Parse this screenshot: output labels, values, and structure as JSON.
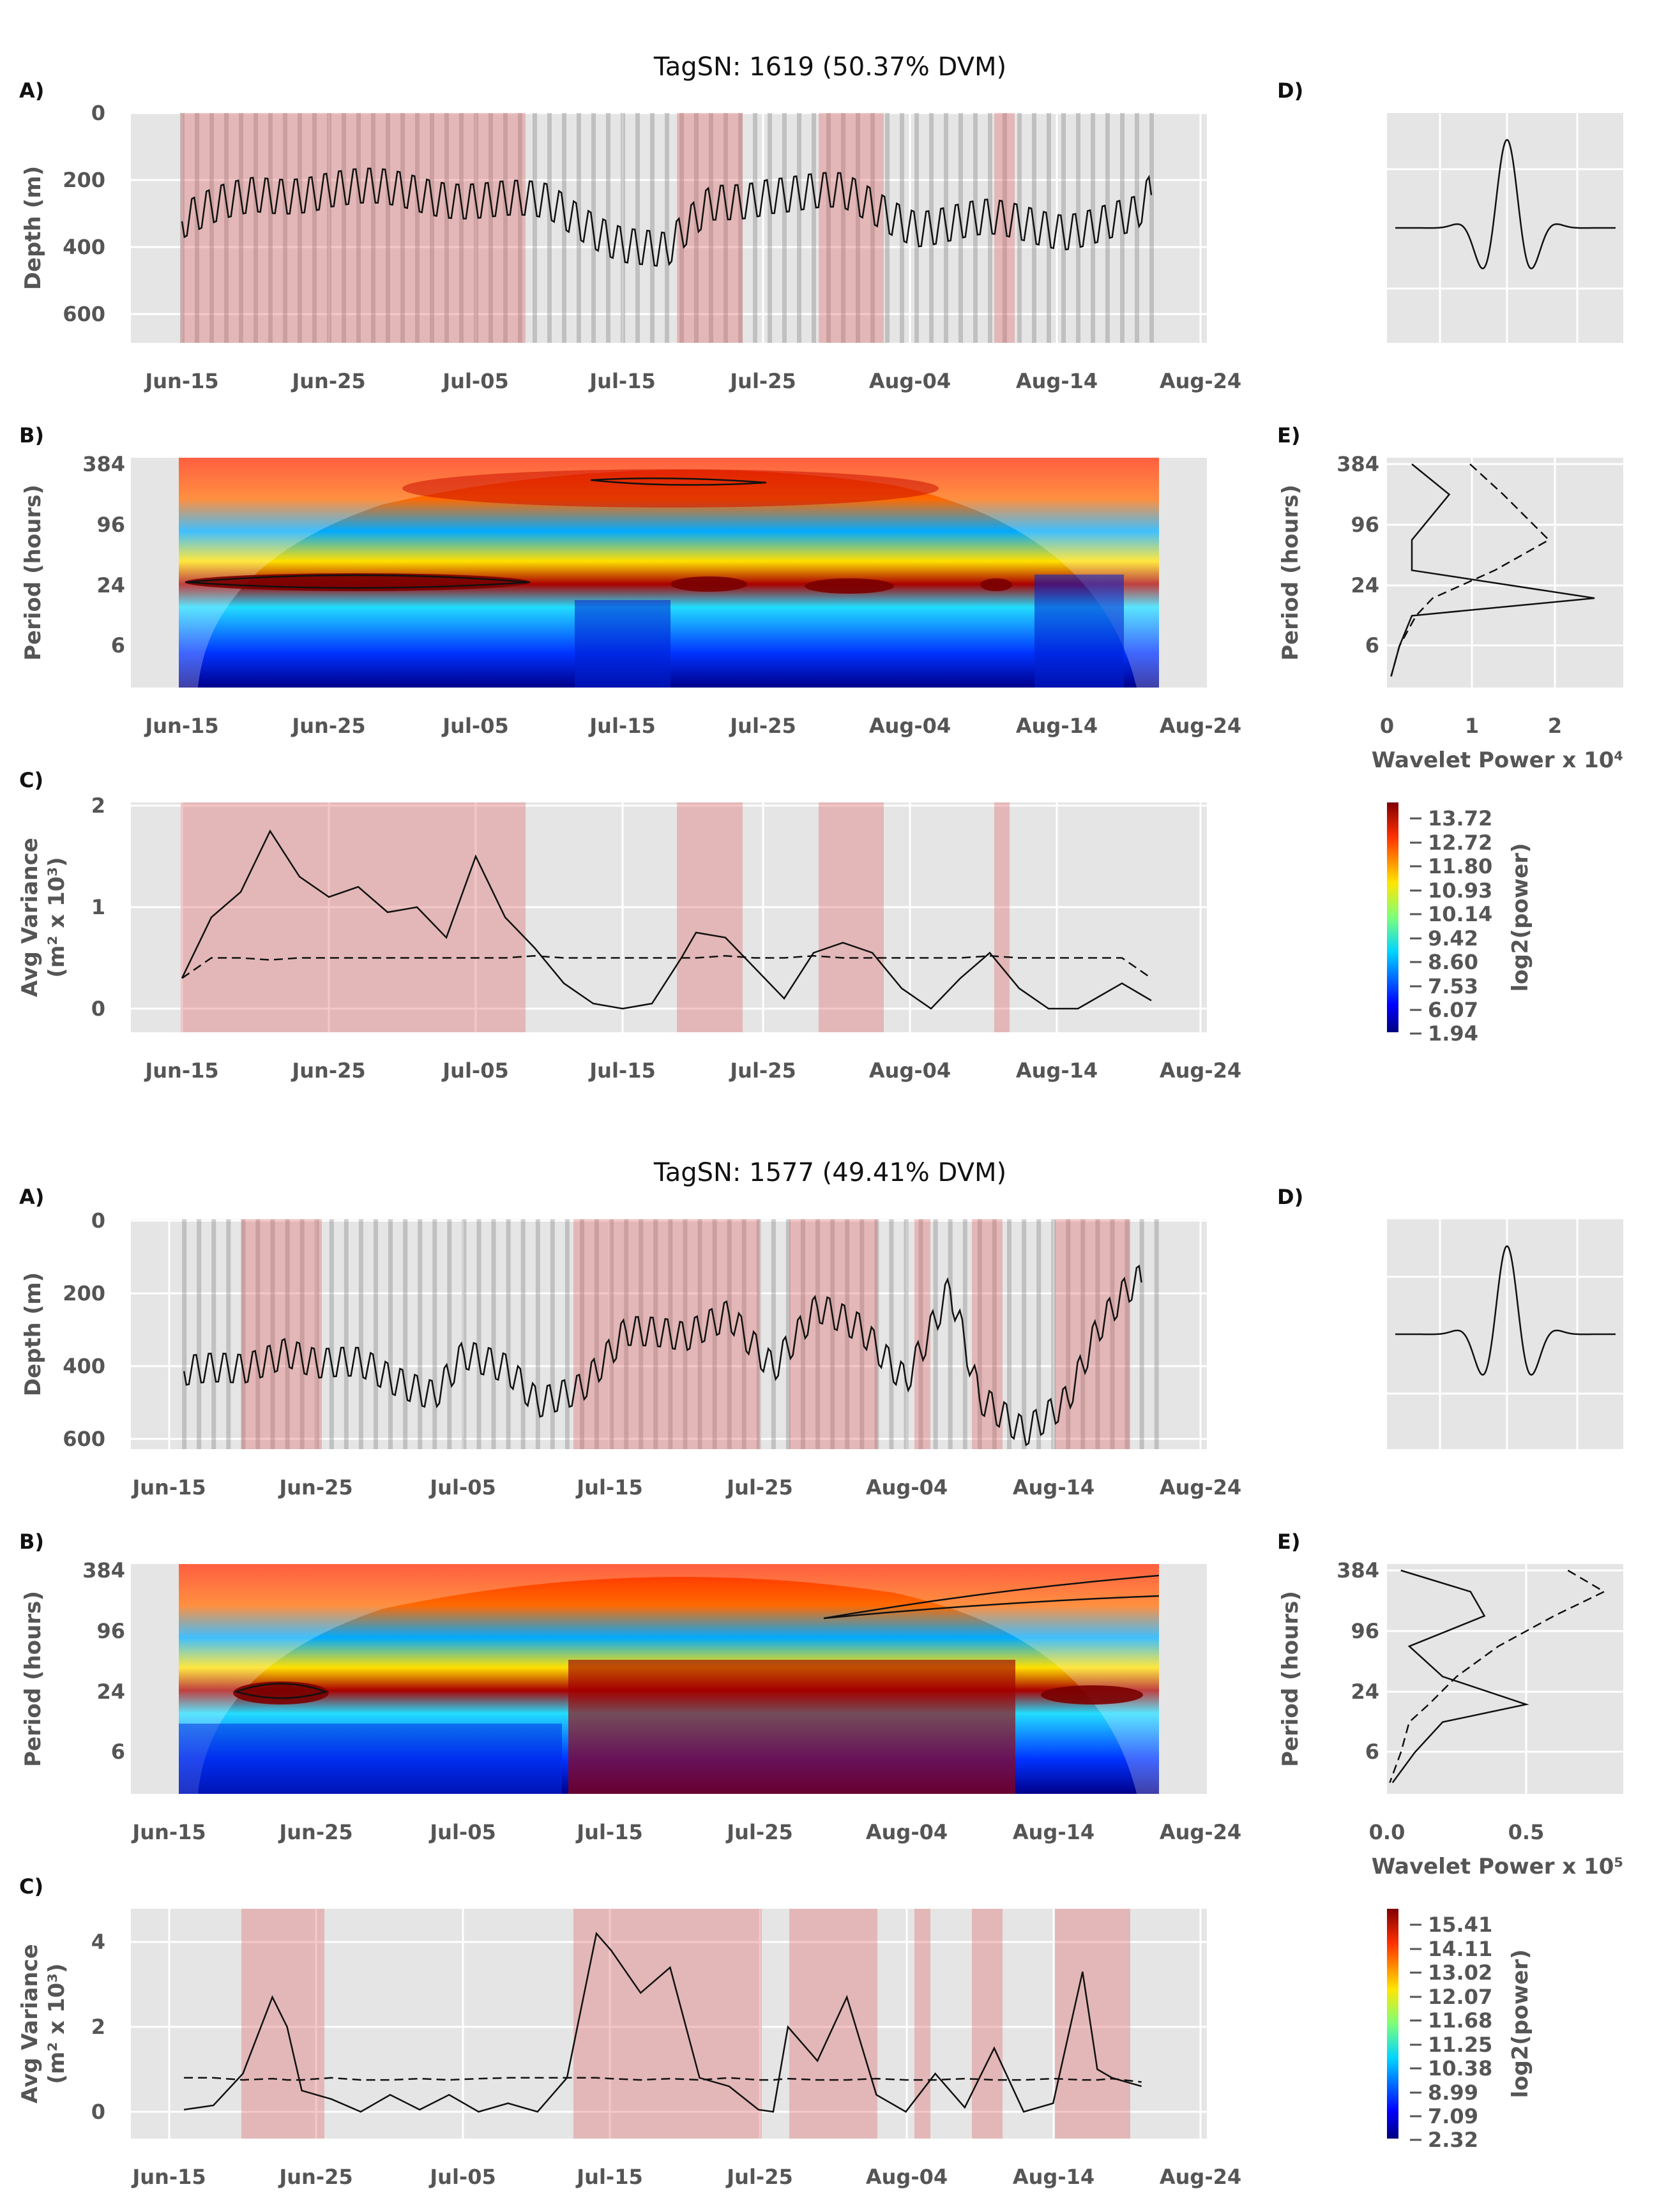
{
  "figures": [
    {
      "title": "TagSN: 1619 (50.37% DVM)",
      "panel_labels": {
        "a": "A)",
        "b": "B)",
        "c": "C)",
        "d": "D)",
        "e": "E)"
      },
      "x_ticks": [
        "Jun-15",
        "Jun-25",
        "Jul-05",
        "Jul-15",
        "Jul-25",
        "Aug-04",
        "Aug-14",
        "Aug-24"
      ],
      "depth_ylabel": "Depth (m)",
      "depth_ticks": [
        "0",
        "200",
        "400",
        "600"
      ],
      "period_ylabel": "Period (hours)",
      "period_ticks": [
        "384",
        "96",
        "24",
        "6"
      ],
      "variance_ylabel_1": "Avg Variance",
      "variance_ylabel_2": "(m² x 10³)",
      "variance_ticks": [
        "2",
        "1",
        "0"
      ],
      "power_xlabel": "Wavelet Power x 10⁴",
      "power_ticks": [
        "0",
        "1",
        "2"
      ],
      "colorbar_label": "log2(power)",
      "colorbar_ticks": [
        "13.72",
        "12.72",
        "11.80",
        "10.93",
        "10.14",
        "9.42",
        "8.60",
        "7.53",
        "6.07",
        "1.94"
      ]
    },
    {
      "title": "TagSN: 1577 (49.41% DVM)",
      "panel_labels": {
        "a": "A)",
        "b": "B)",
        "c": "C)",
        "d": "D)",
        "e": "E)"
      },
      "x_ticks": [
        "Jun-15",
        "Jun-25",
        "Jul-05",
        "Jul-15",
        "Jul-25",
        "Aug-04",
        "Aug-14",
        "Aug-24"
      ],
      "depth_ylabel": "Depth (m)",
      "depth_ticks": [
        "0",
        "200",
        "400",
        "600"
      ],
      "period_ylabel": "Period (hours)",
      "period_ticks": [
        "384",
        "96",
        "24",
        "6"
      ],
      "variance_ylabel_1": "Avg Variance",
      "variance_ylabel_2": "(m² x 10³)",
      "variance_ticks": [
        "4",
        "2",
        "0"
      ],
      "power_xlabel": "Wavelet Power x 10⁵",
      "power_ticks": [
        "0.0",
        "0.5"
      ],
      "colorbar_label": "log2(power)",
      "colorbar_ticks": [
        "15.41",
        "14.11",
        "13.02",
        "12.07",
        "11.68",
        "11.25",
        "10.38",
        "8.99",
        "7.09",
        "2.32"
      ]
    }
  ],
  "chart_data": [
    {
      "type": "line",
      "title": "TagSN: 1619 (50.37% DVM)",
      "panel": "A",
      "ylabel": "Depth (m)",
      "ylim": [
        700,
        0
      ],
      "x_start": "Jun-15",
      "x_end": "Aug-24",
      "dvm_periods_days": [
        [
          0,
          23.5
        ],
        [
          34,
          38.5
        ],
        [
          44,
          48.5
        ],
        [
          55,
          56
        ]
      ],
      "x_days": [
        0,
        5,
        10,
        15,
        20,
        25,
        30,
        33,
        36,
        40,
        45,
        50,
        55,
        60,
        65,
        66
      ],
      "depth": [
        330,
        250,
        230,
        240,
        260,
        280,
        390,
        430,
        280,
        240,
        250,
        340,
        330,
        350,
        320,
        250
      ],
      "grid": true
    },
    {
      "type": "heatmap",
      "title": "TagSN: 1619 (50.37% DVM)",
      "panel": "B",
      "ylabel": "Period (hours)",
      "y_ticks": [
        384,
        96,
        24,
        6
      ]
    },
    {
      "type": "line",
      "title": "TagSN: 1619 (50.37% DVM)",
      "panel": "C",
      "ylabel": "Avg Variance (m² x 10³)",
      "ylim": [
        -0.2,
        2.1
      ],
      "x_days": [
        0,
        2,
        4,
        6,
        8,
        10,
        12,
        14,
        16,
        18,
        20,
        22,
        24,
        26,
        28,
        30,
        32,
        34,
        35,
        37,
        39,
        41,
        43,
        45,
        47,
        49,
        51,
        53,
        55,
        57,
        59,
        61,
        64,
        66
      ],
      "series": [
        {
          "values": [
            0.3,
            0.9,
            1.15,
            1.75,
            1.3,
            1.1,
            1.2,
            0.95,
            1.0,
            0.7,
            1.5,
            0.9,
            0.6,
            0.25,
            0.05,
            0.0,
            0.05,
            0.5,
            0.75,
            0.7,
            0.4,
            0.1,
            0.55,
            0.65,
            0.55,
            0.2,
            0.0,
            0.3,
            0.55,
            0.2,
            0.0,
            0.0,
            0.25,
            0.08
          ]
        },
        {
          "values": [
            0.3,
            0.5,
            0.5,
            0.48,
            0.5,
            0.5,
            0.5,
            0.5,
            0.5,
            0.5,
            0.5,
            0.5,
            0.52,
            0.5,
            0.5,
            0.5,
            0.5,
            0.5,
            0.5,
            0.52,
            0.5,
            0.5,
            0.52,
            0.5,
            0.5,
            0.5,
            0.5,
            0.5,
            0.52,
            0.5,
            0.5,
            0.5,
            0.5,
            0.3
          ]
        }
      ]
    },
    {
      "type": "line",
      "title": "TagSN: 1619 (50.37% DVM)",
      "panel": "E",
      "xlabel": "Wavelet Power x 10⁴",
      "xlim": [
        0,
        2.8
      ],
      "period_log2": [
        9.0,
        8.0,
        6.5,
        5.5,
        4.58,
        4.0,
        3.0,
        2.0
      ],
      "series": [
        {
          "values": [
            0.3,
            0.75,
            0.3,
            0.3,
            2.5,
            0.3,
            0.15,
            0.05
          ]
        },
        {
          "values": [
            1.0,
            1.4,
            1.95,
            1.3,
            0.55,
            0.35,
            0.15,
            0.05
          ]
        }
      ]
    },
    {
      "type": "line",
      "title": "TagSN: 1577 (49.41% DVM)",
      "panel": "A",
      "ylabel": "Depth (m)",
      "ylim": [
        650,
        0
      ],
      "x_start": "Jun-15",
      "x_end": "Aug-24",
      "dvm_periods_days": [
        [
          5,
          10.5
        ],
        [
          28,
          41
        ],
        [
          43,
          49
        ],
        [
          51,
          52
        ],
        [
          55,
          57
        ],
        [
          61,
          66
        ]
      ],
      "x_days": [
        1,
        5,
        8,
        10,
        13,
        15,
        18,
        20,
        23,
        25,
        28,
        31,
        35,
        38,
        41,
        44,
        47,
        50,
        53,
        55,
        58,
        61,
        63,
        65,
        66
      ],
      "depth": [
        420,
        410,
        350,
        390,
        400,
        440,
        470,
        360,
        420,
        510,
        450,
        300,
        330,
        250,
        400,
        250,
        300,
        430,
        190,
        500,
        580,
        480,
        300,
        200,
        170
      ],
      "grid": true
    },
    {
      "type": "heatmap",
      "title": "TagSN: 1577 (49.41% DVM)",
      "panel": "B",
      "ylabel": "Period (hours)",
      "y_ticks": [
        384,
        96,
        24,
        6
      ]
    },
    {
      "type": "line",
      "title": "TagSN: 1577 (49.41% DVM)",
      "panel": "C",
      "ylabel": "Avg Variance (m² x 10³)",
      "ylim": [
        -0.7,
        4.9
      ],
      "x_days": [
        1,
        3,
        5,
        7,
        8,
        9,
        11,
        13,
        15,
        17,
        19,
        21,
        23,
        25,
        27,
        29,
        30,
        32,
        34,
        36,
        38,
        40,
        41,
        42,
        44,
        46,
        48,
        50,
        52,
        54,
        56,
        58,
        60,
        62,
        63,
        64,
        66
      ],
      "series": [
        {
          "values": [
            0.05,
            0.15,
            0.9,
            2.7,
            2.0,
            0.5,
            0.3,
            0.0,
            0.4,
            0.05,
            0.4,
            0.0,
            0.2,
            0.0,
            0.8,
            4.2,
            3.8,
            2.8,
            3.4,
            0.8,
            0.6,
            0.05,
            0.0,
            2.0,
            1.2,
            2.7,
            0.4,
            0.0,
            0.9,
            0.1,
            1.5,
            0.0,
            0.2,
            3.3,
            1.0,
            0.8,
            0.6
          ]
        },
        {
          "values": [
            0.8,
            0.8,
            0.75,
            0.78,
            0.75,
            0.75,
            0.8,
            0.75,
            0.75,
            0.78,
            0.75,
            0.78,
            0.8,
            0.8,
            0.8,
            0.8,
            0.78,
            0.75,
            0.78,
            0.75,
            0.8,
            0.75,
            0.75,
            0.78,
            0.75,
            0.75,
            0.78,
            0.75,
            0.75,
            0.78,
            0.75,
            0.75,
            0.78,
            0.75,
            0.75,
            0.78,
            0.7
          ]
        }
      ]
    },
    {
      "type": "line",
      "title": "TagSN: 1577 (49.41% DVM)",
      "panel": "E",
      "xlabel": "Wavelet Power x 10⁵",
      "xlim": [
        0,
        0.85
      ],
      "period_log2": [
        9.0,
        8.3,
        7.5,
        6.5,
        5.5,
        4.58,
        4.0,
        3.0,
        2.0
      ],
      "series": [
        {
          "values": [
            0.05,
            0.3,
            0.35,
            0.08,
            0.2,
            0.5,
            0.2,
            0.1,
            0.02
          ]
        },
        {
          "values": [
            0.65,
            0.78,
            0.6,
            0.4,
            0.25,
            0.15,
            0.08,
            0.05,
            0.01
          ]
        }
      ]
    }
  ]
}
